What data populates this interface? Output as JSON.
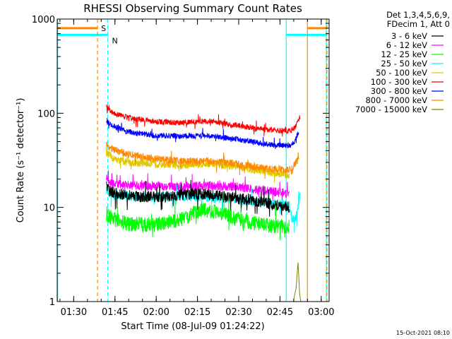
{
  "chart_data": {
    "type": "line",
    "title": "RHESSI Observing Summary Count Rates",
    "xlabel": "Start Time (08-Jul-09 01:24:22)",
    "ylabel": "Count Rate (s⁻¹ detector⁻¹)",
    "y_scale": "log",
    "ylim": [
      1,
      1000
    ],
    "xlim_minutes": [
      -0.37,
      98.5
    ],
    "x_ticks": [
      {
        "label": "01:30",
        "min": 5.63
      },
      {
        "label": "01:45",
        "min": 20.63
      },
      {
        "label": "02:00",
        "min": 35.63
      },
      {
        "label": "02:15",
        "min": 50.63
      },
      {
        "label": "02:30",
        "min": 65.63
      },
      {
        "label": "02:45",
        "min": 80.63
      },
      {
        "label": "03:00",
        "min": 95.63
      }
    ],
    "y_ticks": [
      "1",
      "10",
      "100",
      "1000"
    ],
    "grid": false,
    "legend_header": [
      "Det 1,3,4,5,6,9,",
      "FDecim 1, Att 0"
    ],
    "legend_position": "outside-right",
    "legend": [
      {
        "label": "3 - 6 keV",
        "color": "#000000"
      },
      {
        "label": "6 - 12 keV",
        "color": "#ff00ff"
      },
      {
        "label": "12 - 25 keV",
        "color": "#00ff00"
      },
      {
        "label": "25 - 50 keV",
        "color": "#00ffff"
      },
      {
        "label": "50 - 100 keV",
        "color": "#e0c800"
      },
      {
        "label": "100 - 300 keV",
        "color": "#ff0000"
      },
      {
        "label": "300 - 800 keV",
        "color": "#0000ff"
      },
      {
        "label": "800 - 7000 keV",
        "color": "#ff8800"
      },
      {
        "label": "7000 - 15000 keV",
        "color": "#808000"
      }
    ],
    "series": [
      {
        "name": "3 - 6 keV",
        "color": "#000000",
        "noise": 0.06,
        "points": [
          [
            17.5,
            17
          ],
          [
            18.5,
            15
          ],
          [
            22,
            14
          ],
          [
            30,
            13
          ],
          [
            40,
            13
          ],
          [
            50,
            14
          ],
          [
            60,
            13
          ],
          [
            70,
            12
          ],
          [
            80,
            10.5
          ],
          [
            84,
            10
          ]
        ]
      },
      {
        "name": "6 - 12 keV",
        "color": "#ff00ff",
        "noise": 0.05,
        "points": [
          [
            17.5,
            21
          ],
          [
            19,
            18
          ],
          [
            25,
            17
          ],
          [
            35,
            17
          ],
          [
            45,
            16.5
          ],
          [
            55,
            17
          ],
          [
            65,
            16.5
          ],
          [
            75,
            15
          ],
          [
            84,
            14
          ]
        ]
      },
      {
        "name": "12 - 25 keV",
        "color": "#00ff00",
        "noise": 0.08,
        "points": [
          [
            17.5,
            8.5
          ],
          [
            20,
            7.5
          ],
          [
            25,
            6.7
          ],
          [
            35,
            6.5
          ],
          [
            45,
            7.5
          ],
          [
            52,
            9.5
          ],
          [
            58,
            9
          ],
          [
            65,
            7.5
          ],
          [
            75,
            6.5
          ],
          [
            84,
            6.2
          ]
        ]
      },
      {
        "name": "25 - 50 keV",
        "color": "#00ffff",
        "noise": 0.05,
        "points": [
          [
            17.5,
            15
          ],
          [
            20,
            13.5
          ],
          [
            30,
            12.8
          ],
          [
            40,
            13
          ],
          [
            50,
            13
          ],
          [
            60,
            12.5
          ],
          [
            70,
            11.5
          ],
          [
            80,
            11
          ],
          [
            84,
            10.5
          ],
          [
            85,
            7.5
          ],
          [
            86,
            7.5
          ],
          [
            87,
            9
          ],
          [
            88,
            15
          ]
        ]
      },
      {
        "name": "50 - 100 keV",
        "color": "#e0c800",
        "noise": 0.04,
        "points": [
          [
            17.5,
            38
          ],
          [
            20,
            33
          ],
          [
            25,
            30
          ],
          [
            35,
            29
          ],
          [
            45,
            28
          ],
          [
            55,
            29
          ],
          [
            65,
            27
          ],
          [
            75,
            24
          ],
          [
            84,
            22
          ]
        ]
      },
      {
        "name": "100 - 300 keV",
        "color": "#ff0000",
        "noise": 0.03,
        "points": [
          [
            17.5,
            118
          ],
          [
            20,
            100
          ],
          [
            25,
            90
          ],
          [
            35,
            82
          ],
          [
            45,
            79
          ],
          [
            55,
            83
          ],
          [
            65,
            74
          ],
          [
            75,
            67
          ],
          [
            84,
            65
          ],
          [
            86,
            70
          ],
          [
            88,
            92
          ]
        ]
      },
      {
        "name": "300 - 800 keV",
        "color": "#0000ff",
        "noise": 0.03,
        "points": [
          [
            17.5,
            82
          ],
          [
            20,
            73
          ],
          [
            25,
            64
          ],
          [
            35,
            58
          ],
          [
            45,
            57
          ],
          [
            55,
            58
          ],
          [
            65,
            53
          ],
          [
            75,
            47
          ],
          [
            84,
            45
          ],
          [
            86,
            50
          ],
          [
            87.5,
            65
          ]
        ]
      },
      {
        "name": "800 - 7000 keV",
        "color": "#ff8800",
        "noise": 0.04,
        "points": [
          [
            17.5,
            46
          ],
          [
            20,
            41
          ],
          [
            25,
            37
          ],
          [
            35,
            33
          ],
          [
            45,
            31
          ],
          [
            55,
            31
          ],
          [
            65,
            29
          ],
          [
            75,
            26
          ],
          [
            84,
            25
          ],
          [
            85,
            24
          ],
          [
            86,
            29
          ],
          [
            87.5,
            33
          ]
        ]
      },
      {
        "name": "7000 - 15000 keV",
        "color": "#808000",
        "noise": 0,
        "points": [
          [
            85.5,
            1
          ],
          [
            86.5,
            1.4
          ],
          [
            87.2,
            2.6
          ],
          [
            87.8,
            1.2
          ],
          [
            88.2,
            1
          ]
        ]
      }
    ],
    "saa_flag": {
      "label": "S",
      "color": "#ff8800",
      "level": 800
    },
    "night_flag": {
      "label": "N",
      "color": "#00ffff",
      "level": 680
    },
    "v_lines": [
      {
        "min": -0.2,
        "color": "#00ffff",
        "dash": false
      },
      {
        "min": 14.3,
        "color": "#ff8800",
        "dash": true
      },
      {
        "min": 18.0,
        "color": "#00ffff",
        "dash": true
      },
      {
        "min": 82.9,
        "color": "#00ffff",
        "dash": false
      },
      {
        "min": 90.6,
        "color": "#ff8800",
        "dash": false
      },
      {
        "min": 97.5,
        "color": "#00ffff",
        "dash": false
      },
      {
        "min": 97.7,
        "color": "#ff8800",
        "dash": true
      }
    ],
    "flag_segments": [
      {
        "from": -0.2,
        "to": 14.3,
        "color": "#ff8800",
        "level": 800
      },
      {
        "from": -0.2,
        "to": 18.0,
        "color": "#00ffff",
        "level": 680
      },
      {
        "from": 82.9,
        "to": 97.5,
        "color": "#00ffff",
        "level": 680
      },
      {
        "from": 90.6,
        "to": 97.7,
        "color": "#ff8800",
        "level": 800
      }
    ]
  },
  "timestamp": "15-Oct-2021 08:10"
}
